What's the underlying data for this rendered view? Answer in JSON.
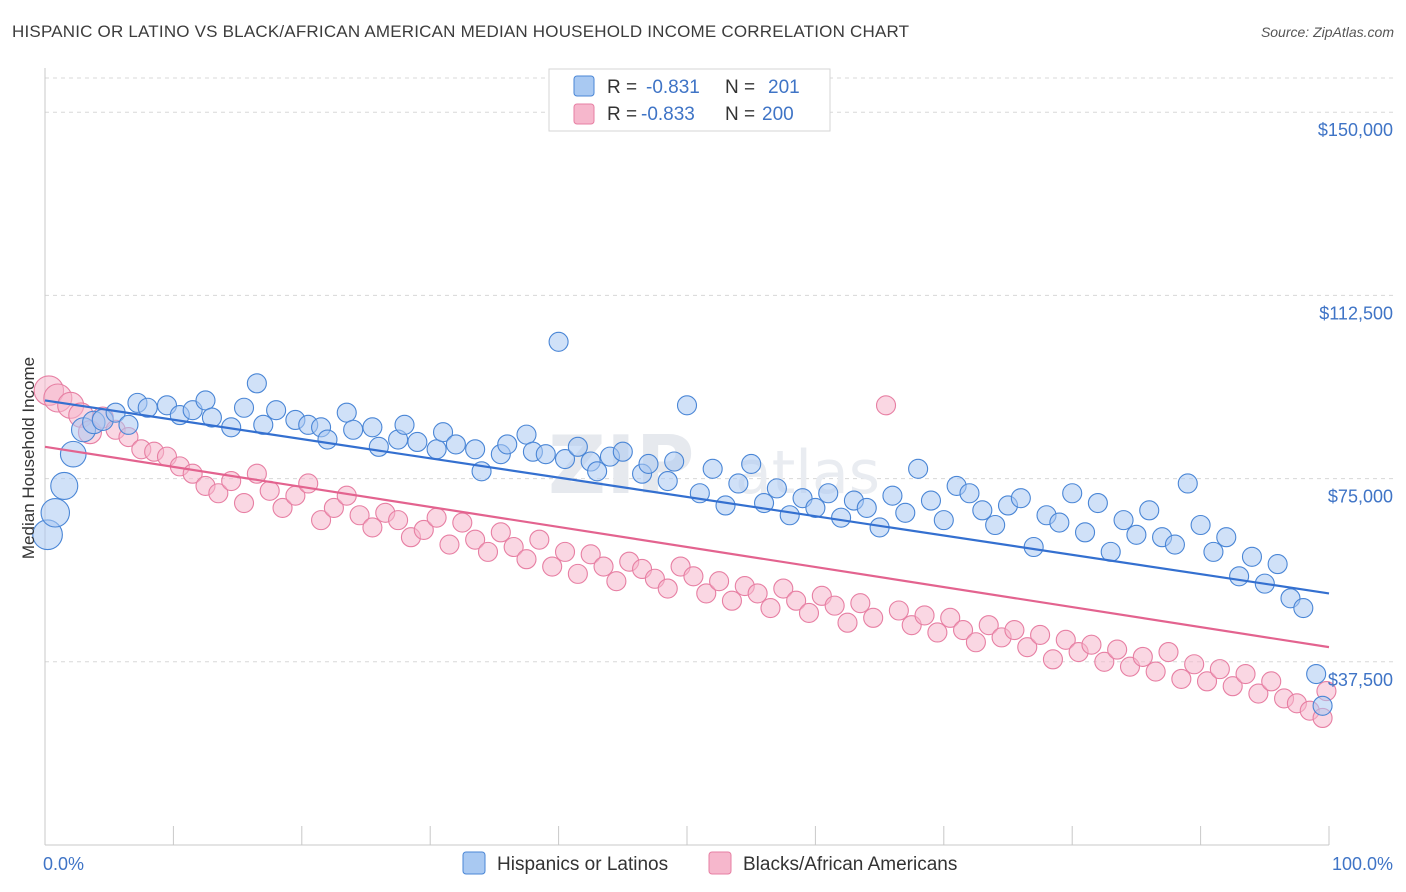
{
  "title": "HISPANIC OR LATINO VS BLACK/AFRICAN AMERICAN MEDIAN HOUSEHOLD INCOME CORRELATION CHART",
  "source": "Source: ZipAtlas.com",
  "watermark": {
    "main": "ZIP",
    "sub": "atlas"
  },
  "colors": {
    "blue_fill": "#a9c9f2",
    "blue_stroke": "#4a86d6",
    "blue_line": "#3470d0",
    "pink_fill": "#f6b7cc",
    "pink_stroke": "#e77fa3",
    "pink_line": "#e3638f",
    "tick_text": "#3f74c6",
    "grid": "#d8d8d8"
  },
  "legend": {
    "rows": [
      {
        "r_label": "R =",
        "r_value": "-0.831",
        "n_label": "N =",
        "n_value": "201"
      },
      {
        "r_label": "R =",
        "r_value": "-0.833",
        "n_label": "N =",
        "n_value": "200"
      }
    ]
  },
  "chart_data": {
    "type": "scatter",
    "title": "HISPANIC OR LATINO VS BLACK/AFRICAN AMERICAN MEDIAN HOUSEHOLD INCOME CORRELATION CHART",
    "xlabel": "",
    "ylabel": "Median Household Income",
    "xlim": [
      0,
      100
    ],
    "ylim": [
      0,
      157000
    ],
    "x_tick_labels": [
      "0.0%",
      "100.0%"
    ],
    "y_ticks": [
      37500,
      75000,
      112500,
      150000
    ],
    "y_tick_labels": [
      "$37,500",
      "$75,000",
      "$112,500",
      "$150,000"
    ],
    "grid": "horizontal dashed",
    "legend_position": "top-center",
    "series": [
      {
        "name": "Hispanics or Latinos",
        "r": -0.831,
        "n": 201,
        "trend": {
          "x": [
            0,
            100
          ],
          "y": [
            91000,
            51500
          ]
        },
        "points": [
          [
            0.2,
            63500
          ],
          [
            0.8,
            68000
          ],
          [
            1.5,
            73500
          ],
          [
            2.2,
            80000
          ],
          [
            3.0,
            85000
          ],
          [
            3.8,
            86500
          ],
          [
            4.5,
            87000
          ],
          [
            5.5,
            88500
          ],
          [
            6.5,
            86000
          ],
          [
            7.2,
            90500
          ],
          [
            8.0,
            89500
          ],
          [
            9.5,
            90000
          ],
          [
            10.5,
            88000
          ],
          [
            11.5,
            89000
          ],
          [
            12.5,
            91000
          ],
          [
            13.0,
            87500
          ],
          [
            14.5,
            85500
          ],
          [
            15.5,
            89500
          ],
          [
            16.5,
            94500
          ],
          [
            17.0,
            86000
          ],
          [
            18.0,
            89000
          ],
          [
            19.5,
            87000
          ],
          [
            20.5,
            86000
          ],
          [
            21.5,
            85500
          ],
          [
            22.0,
            83000
          ],
          [
            23.5,
            88500
          ],
          [
            24.0,
            85000
          ],
          [
            25.5,
            85500
          ],
          [
            26.0,
            81500
          ],
          [
            27.5,
            83000
          ],
          [
            28.0,
            86000
          ],
          [
            29.0,
            82500
          ],
          [
            30.5,
            81000
          ],
          [
            31.0,
            84500
          ],
          [
            32.0,
            82000
          ],
          [
            33.5,
            81000
          ],
          [
            34.0,
            76500
          ],
          [
            35.5,
            80000
          ],
          [
            36.0,
            82000
          ],
          [
            37.5,
            84000
          ],
          [
            38.0,
            80500
          ],
          [
            39.0,
            80000
          ],
          [
            40.0,
            103000
          ],
          [
            40.5,
            79000
          ],
          [
            41.5,
            81500
          ],
          [
            42.5,
            78500
          ],
          [
            43.0,
            76500
          ],
          [
            44.0,
            79500
          ],
          [
            45.0,
            80500
          ],
          [
            46.5,
            76000
          ],
          [
            47.0,
            78000
          ],
          [
            48.5,
            74500
          ],
          [
            49.0,
            78500
          ],
          [
            50.0,
            90000
          ],
          [
            51.0,
            72000
          ],
          [
            52.0,
            77000
          ],
          [
            53.0,
            69500
          ],
          [
            54.0,
            74000
          ],
          [
            55.0,
            78000
          ],
          [
            56.0,
            70000
          ],
          [
            57.0,
            73000
          ],
          [
            58.0,
            67500
          ],
          [
            59.0,
            71000
          ],
          [
            60.0,
            69000
          ],
          [
            61.0,
            72000
          ],
          [
            62.0,
            67000
          ],
          [
            63.0,
            70500
          ],
          [
            64.0,
            69000
          ],
          [
            65.0,
            65000
          ],
          [
            66.0,
            71500
          ],
          [
            67.0,
            68000
          ],
          [
            68.0,
            77000
          ],
          [
            69.0,
            70500
          ],
          [
            70.0,
            66500
          ],
          [
            71.0,
            73500
          ],
          [
            72.0,
            72000
          ],
          [
            73.0,
            68500
          ],
          [
            74.0,
            65500
          ],
          [
            75.0,
            69500
          ],
          [
            76.0,
            71000
          ],
          [
            77.0,
            61000
          ],
          [
            78.0,
            67500
          ],
          [
            79.0,
            66000
          ],
          [
            80.0,
            72000
          ],
          [
            81.0,
            64000
          ],
          [
            82.0,
            70000
          ],
          [
            83.0,
            60000
          ],
          [
            84.0,
            66500
          ],
          [
            85.0,
            63500
          ],
          [
            86.0,
            68500
          ],
          [
            87.0,
            63000
          ],
          [
            88.0,
            61500
          ],
          [
            89.0,
            74000
          ],
          [
            90.0,
            65500
          ],
          [
            91.0,
            60000
          ],
          [
            92.0,
            63000
          ],
          [
            93.0,
            55000
          ],
          [
            94.0,
            59000
          ],
          [
            95.0,
            53500
          ],
          [
            96.0,
            57500
          ],
          [
            97.0,
            50500
          ],
          [
            98.0,
            48500
          ],
          [
            99.0,
            35000
          ],
          [
            99.5,
            28500
          ]
        ]
      },
      {
        "name": "Blacks/African Americans",
        "r": -0.833,
        "n": 200,
        "trend": {
          "x": [
            0,
            100
          ],
          "y": [
            81500,
            40500
          ]
        },
        "points": [
          [
            0.3,
            93000
          ],
          [
            1.0,
            91500
          ],
          [
            2.0,
            90000
          ],
          [
            2.8,
            88000
          ],
          [
            3.5,
            84500
          ],
          [
            4.5,
            87500
          ],
          [
            5.5,
            85000
          ],
          [
            6.5,
            83500
          ],
          [
            7.5,
            81000
          ],
          [
            8.5,
            80500
          ],
          [
            9.5,
            79500
          ],
          [
            10.5,
            77500
          ],
          [
            11.5,
            76000
          ],
          [
            12.5,
            73500
          ],
          [
            13.5,
            72000
          ],
          [
            14.5,
            74500
          ],
          [
            15.5,
            70000
          ],
          [
            16.5,
            76000
          ],
          [
            17.5,
            72500
          ],
          [
            18.5,
            69000
          ],
          [
            19.5,
            71500
          ],
          [
            20.5,
            74000
          ],
          [
            21.5,
            66500
          ],
          [
            22.5,
            69000
          ],
          [
            23.5,
            71500
          ],
          [
            24.5,
            67500
          ],
          [
            25.5,
            65000
          ],
          [
            26.5,
            68000
          ],
          [
            27.5,
            66500
          ],
          [
            28.5,
            63000
          ],
          [
            29.5,
            64500
          ],
          [
            30.5,
            67000
          ],
          [
            31.5,
            61500
          ],
          [
            32.5,
            66000
          ],
          [
            33.5,
            62500
          ],
          [
            34.5,
            60000
          ],
          [
            35.5,
            64000
          ],
          [
            36.5,
            61000
          ],
          [
            37.5,
            58500
          ],
          [
            38.5,
            62500
          ],
          [
            39.5,
            57000
          ],
          [
            40.5,
            60000
          ],
          [
            41.5,
            55500
          ],
          [
            42.5,
            59500
          ],
          [
            43.5,
            57000
          ],
          [
            44.5,
            54000
          ],
          [
            45.5,
            58000
          ],
          [
            46.5,
            56500
          ],
          [
            47.5,
            54500
          ],
          [
            48.5,
            52500
          ],
          [
            49.5,
            57000
          ],
          [
            50.5,
            55000
          ],
          [
            51.5,
            51500
          ],
          [
            52.5,
            54000
          ],
          [
            53.5,
            50000
          ],
          [
            54.5,
            53000
          ],
          [
            55.5,
            51500
          ],
          [
            56.5,
            48500
          ],
          [
            57.5,
            52500
          ],
          [
            58.5,
            50000
          ],
          [
            59.5,
            47500
          ],
          [
            60.5,
            51000
          ],
          [
            61.5,
            49000
          ],
          [
            62.5,
            45500
          ],
          [
            63.5,
            49500
          ],
          [
            64.5,
            46500
          ],
          [
            65.5,
            90000
          ],
          [
            66.5,
            48000
          ],
          [
            67.5,
            45000
          ],
          [
            68.5,
            47000
          ],
          [
            69.5,
            43500
          ],
          [
            70.5,
            46500
          ],
          [
            71.5,
            44000
          ],
          [
            72.5,
            41500
          ],
          [
            73.5,
            45000
          ],
          [
            74.5,
            42500
          ],
          [
            75.5,
            44000
          ],
          [
            76.5,
            40500
          ],
          [
            77.5,
            43000
          ],
          [
            78.5,
            38000
          ],
          [
            79.5,
            42000
          ],
          [
            80.5,
            39500
          ],
          [
            81.5,
            41000
          ],
          [
            82.5,
            37500
          ],
          [
            83.5,
            40000
          ],
          [
            84.5,
            36500
          ],
          [
            85.5,
            38500
          ],
          [
            86.5,
            35500
          ],
          [
            87.5,
            39500
          ],
          [
            88.5,
            34000
          ],
          [
            89.5,
            37000
          ],
          [
            90.5,
            33500
          ],
          [
            91.5,
            36000
          ],
          [
            92.5,
            32500
          ],
          [
            93.5,
            35000
          ],
          [
            94.5,
            31000
          ],
          [
            95.5,
            33500
          ],
          [
            96.5,
            30000
          ],
          [
            97.5,
            29000
          ],
          [
            98.5,
            27500
          ],
          [
            99.5,
            26000
          ],
          [
            99.8,
            31500
          ]
        ]
      }
    ]
  },
  "bottom_legend": [
    {
      "label": "Hispanics or Latinos"
    },
    {
      "label": "Blacks/African Americans"
    }
  ]
}
